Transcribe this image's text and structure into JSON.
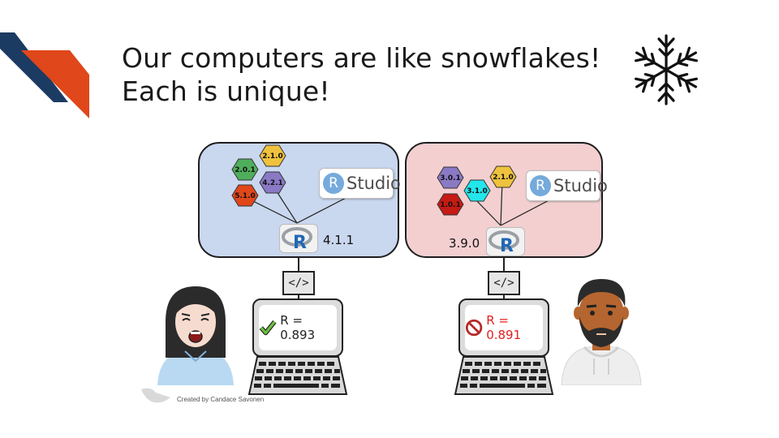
{
  "title": {
    "line1": "Our computers are like snowflakes!",
    "line2": "Each is unique!"
  },
  "icons": {
    "snowflake": "snowflake-icon",
    "check": "check-icon",
    "no_entry": "no-entry-icon",
    "code": "code-icon"
  },
  "left": {
    "packages": [
      "2.0.1",
      "2.1.0",
      "4.2.1",
      "5.1.0"
    ],
    "package_colors": [
      "#4fae5b",
      "#eec23d",
      "#8a79c4",
      "#e0471a"
    ],
    "rstudio_r": "R",
    "rstudio_word": "Studio",
    "r_version": "4.1.1",
    "code_symbol": "</>",
    "result": "R = 0.893",
    "result_color": "#222222",
    "panel_color": "#c9d7ef"
  },
  "right": {
    "packages": [
      "3.0.1",
      "2.1.0",
      "3.1.0",
      "1.0.1"
    ],
    "package_colors": [
      "#8a79c4",
      "#eec23d",
      "#22e6ec",
      "#c61a14"
    ],
    "rstudio_r": "R",
    "rstudio_word": "Studio",
    "r_version": "3.9.0",
    "code_symbol": "</>",
    "result": "R = 0.891",
    "result_color": "#e02020",
    "panel_color": "#f3cfd0"
  },
  "credit": "Created by Candace Savonen",
  "colors": {
    "accent_navy": "#1c3b63",
    "accent_orange": "#e0471a"
  }
}
